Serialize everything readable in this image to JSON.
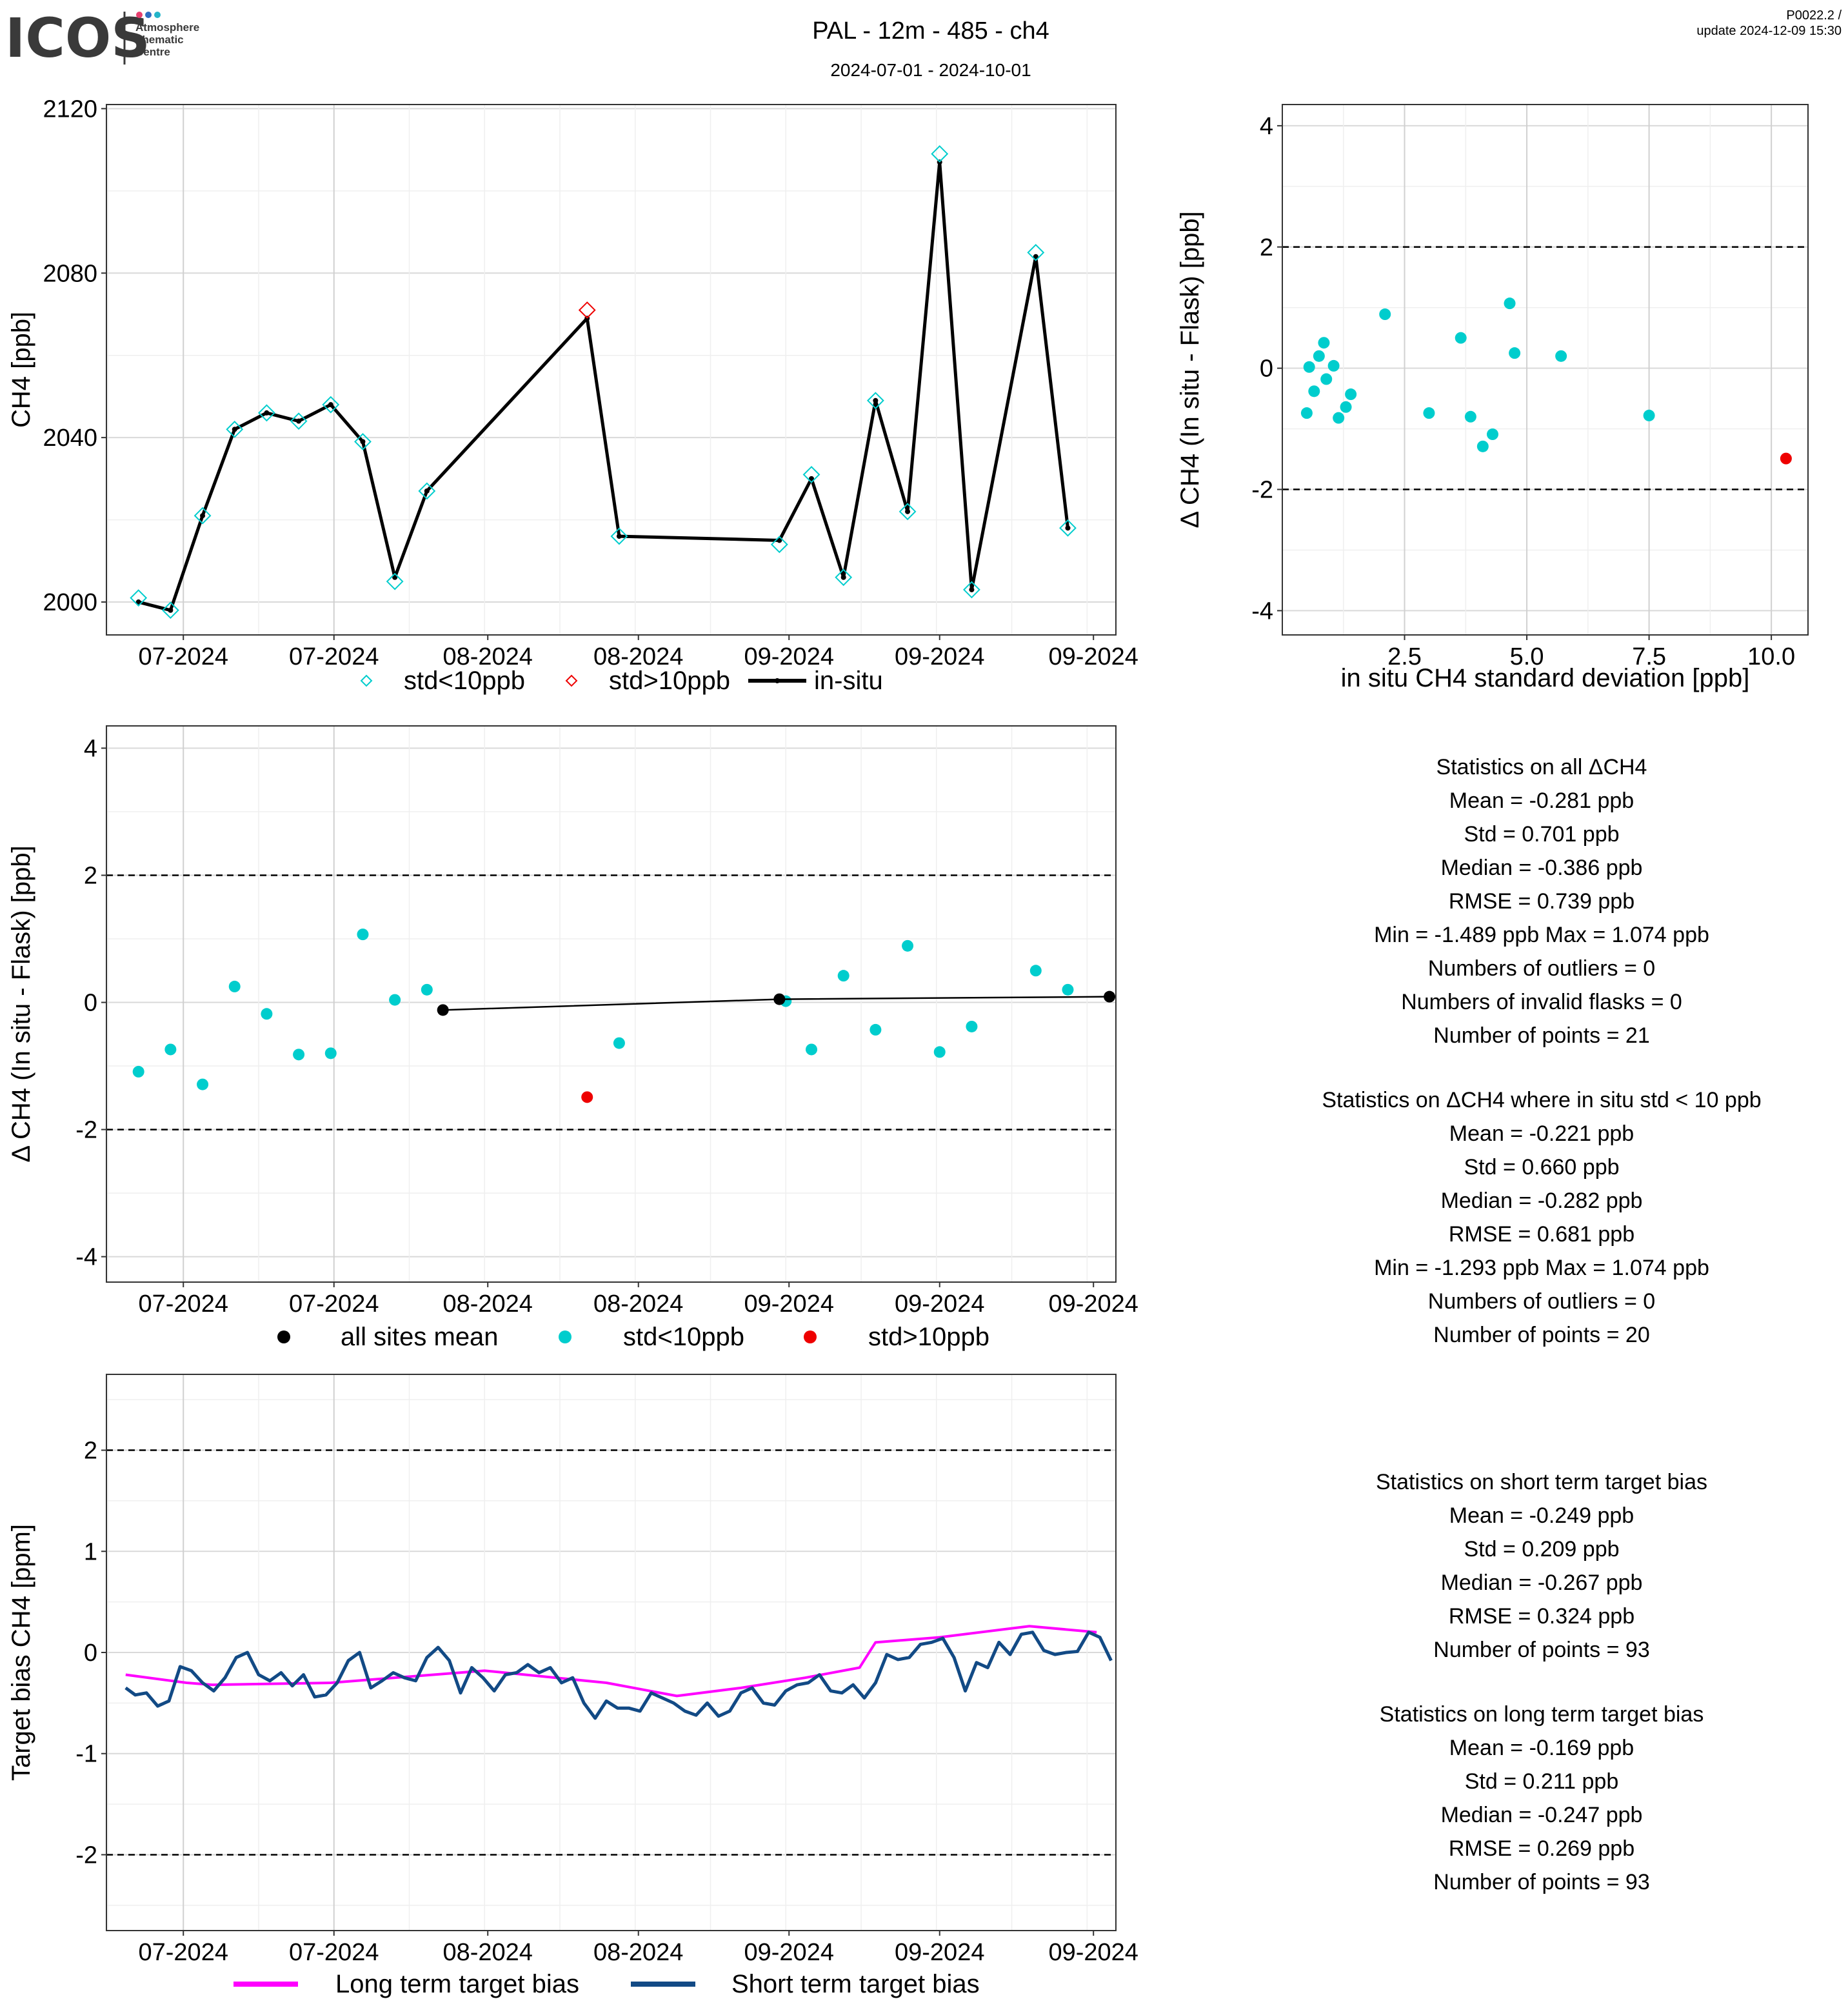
{
  "header": {
    "logo_text": "ICOS",
    "logo_subtitle": [
      "Atmosphere",
      "Thematic",
      "Centre"
    ],
    "logo_dot_colors": [
      "#e83f6f",
      "#2e6dc1",
      "#24b5c9"
    ],
    "title": "PAL - 12m - 485 - ch4",
    "date_range": "2024-07-01 - 2024-10-01",
    "version": "P0022.2 /",
    "update": "update  2024-12-09 15:30"
  },
  "colors": {
    "cyan": "#00cdcd",
    "red": "#ee0000",
    "magenta": "#ff00ff",
    "navy": "#124a85",
    "black": "#000000"
  },
  "chart_data": [
    {
      "type": "line",
      "ylabel": "CH4 [ppb]",
      "ylim": [
        1992,
        2121
      ],
      "yticks": [
        2000,
        2040,
        2080,
        2120
      ],
      "xlim": [
        0,
        31.5
      ],
      "xtick_positions": [
        2.4,
        7.1,
        11.9,
        16.6,
        21.3,
        26.0,
        30.8
      ],
      "xtick_labels": [
        "07-2024",
        "07-2024",
        "08-2024",
        "08-2024",
        "09-2024",
        "09-2024",
        "09-2024"
      ],
      "legend": [
        "std<10ppb",
        "std>10ppb",
        "in-situ"
      ],
      "x": [
        1,
        2,
        3,
        4,
        5,
        6,
        7,
        8,
        9,
        10,
        15,
        16,
        21,
        22,
        23,
        24,
        25,
        26,
        27,
        29,
        30
      ],
      "flask": [
        2001,
        1998,
        2021,
        2042,
        2046,
        2044,
        2048,
        2039,
        2005,
        2027,
        2071,
        2016,
        2014,
        2031,
        2006,
        2049,
        2022,
        2109,
        2003,
        2085,
        2018
      ],
      "in_situ": [
        2000,
        1998,
        2021,
        2042,
        2046,
        2044,
        2048,
        2039,
        2006,
        2027,
        2069,
        2016,
        2015,
        2030,
        2006,
        2049,
        2022,
        2107,
        2003,
        2084,
        2018
      ],
      "flask_flag": [
        "lo",
        "lo",
        "lo",
        "lo",
        "lo",
        "lo",
        "lo",
        "lo",
        "lo",
        "lo",
        "hi",
        "lo",
        "lo",
        "lo",
        "lo",
        "lo",
        "lo",
        "lo",
        "lo",
        "lo",
        "lo"
      ]
    },
    {
      "type": "scatter",
      "xlabel": "in situ CH4 standard deviation [ppb]",
      "ylabel": "Δ CH4 (In situ - Flask) [ppb]",
      "xlim": [
        0.0,
        10.75
      ],
      "ylim": [
        -4.4,
        4.35
      ],
      "xticks": [
        2.5,
        5.0,
        7.5,
        10.0
      ],
      "xtick_labels": [
        "2.5",
        "5.0",
        "7.5",
        "10.0"
      ],
      "yticks": [
        -4,
        -2,
        0,
        2,
        4
      ],
      "ref_lines": [
        -2,
        2
      ],
      "points": [
        {
          "x": 0.5,
          "y": -0.74,
          "c": "lo"
        },
        {
          "x": 0.55,
          "y": 0.02,
          "c": "lo"
        },
        {
          "x": 0.65,
          "y": -0.38,
          "c": "lo"
        },
        {
          "x": 0.75,
          "y": 0.2,
          "c": "lo"
        },
        {
          "x": 0.85,
          "y": 0.42,
          "c": "lo"
        },
        {
          "x": 0.9,
          "y": -0.18,
          "c": "lo"
        },
        {
          "x": 1.05,
          "y": 0.04,
          "c": "lo"
        },
        {
          "x": 1.15,
          "y": -0.82,
          "c": "lo"
        },
        {
          "x": 1.3,
          "y": -0.64,
          "c": "lo"
        },
        {
          "x": 1.4,
          "y": -0.43,
          "c": "lo"
        },
        {
          "x": 2.1,
          "y": 0.89,
          "c": "lo"
        },
        {
          "x": 3.0,
          "y": -0.74,
          "c": "lo"
        },
        {
          "x": 3.65,
          "y": 0.5,
          "c": "lo"
        },
        {
          "x": 3.85,
          "y": -0.8,
          "c": "lo"
        },
        {
          "x": 4.1,
          "y": -1.29,
          "c": "lo"
        },
        {
          "x": 4.3,
          "y": -1.09,
          "c": "lo"
        },
        {
          "x": 4.65,
          "y": 1.07,
          "c": "lo"
        },
        {
          "x": 4.75,
          "y": 0.25,
          "c": "lo"
        },
        {
          "x": 5.7,
          "y": 0.2,
          "c": "lo"
        },
        {
          "x": 7.5,
          "y": -0.78,
          "c": "lo"
        },
        {
          "x": 10.3,
          "y": -1.49,
          "c": "hi"
        }
      ]
    },
    {
      "type": "scatter",
      "ylabel": "Δ CH4 (In situ - Flask) [ppb]",
      "ylim": [
        -4.4,
        4.35
      ],
      "yticks": [
        -4,
        -2,
        0,
        2,
        4
      ],
      "ref_lines": [
        -2,
        2
      ],
      "xlim": [
        0,
        31.5
      ],
      "xtick_positions": [
        2.4,
        7.1,
        11.9,
        16.6,
        21.3,
        26.0,
        30.8
      ],
      "xtick_labels": [
        "07-2024",
        "07-2024",
        "08-2024",
        "08-2024",
        "09-2024",
        "09-2024",
        "09-2024"
      ],
      "legend": [
        "all sites mean",
        "std<10ppb",
        "std>10ppb"
      ],
      "points": [
        {
          "x": 1,
          "y": -1.09,
          "c": "lo"
        },
        {
          "x": 2,
          "y": -0.74,
          "c": "lo"
        },
        {
          "x": 3,
          "y": -1.29,
          "c": "lo"
        },
        {
          "x": 4,
          "y": 0.25,
          "c": "lo"
        },
        {
          "x": 5,
          "y": -0.18,
          "c": "lo"
        },
        {
          "x": 6,
          "y": -0.82,
          "c": "lo"
        },
        {
          "x": 7,
          "y": -0.8,
          "c": "lo"
        },
        {
          "x": 8,
          "y": 1.07,
          "c": "lo"
        },
        {
          "x": 9,
          "y": 0.04,
          "c": "lo"
        },
        {
          "x": 10,
          "y": 0.2,
          "c": "lo"
        },
        {
          "x": 15,
          "y": -1.49,
          "c": "hi"
        },
        {
          "x": 16,
          "y": -0.64,
          "c": "lo"
        },
        {
          "x": 21.2,
          "y": 0.02,
          "c": "lo"
        },
        {
          "x": 22,
          "y": -0.74,
          "c": "lo"
        },
        {
          "x": 23,
          "y": 0.42,
          "c": "lo"
        },
        {
          "x": 24,
          "y": -0.43,
          "c": "lo"
        },
        {
          "x": 25,
          "y": 0.89,
          "c": "lo"
        },
        {
          "x": 26,
          "y": -0.78,
          "c": "lo"
        },
        {
          "x": 27,
          "y": -0.38,
          "c": "lo"
        },
        {
          "x": 29,
          "y": 0.5,
          "c": "lo"
        },
        {
          "x": 30,
          "y": 0.2,
          "c": "lo"
        }
      ],
      "mean_x": [
        10.5,
        21.0,
        31.3
      ],
      "mean_y": [
        -0.12,
        0.05,
        0.09
      ]
    },
    {
      "type": "line",
      "ylabel": "Target bias CH4 [ppm]",
      "ylim": [
        -2.75,
        2.75
      ],
      "yticks": [
        -2,
        -1,
        0,
        1,
        2
      ],
      "ref_lines": [
        -2,
        2
      ],
      "xlim": [
        0,
        31.5
      ],
      "xtick_positions": [
        2.4,
        7.1,
        11.9,
        16.6,
        21.3,
        26.0,
        30.8
      ],
      "xtick_labels": [
        "07-2024",
        "07-2024",
        "08-2024",
        "08-2024",
        "09-2024",
        "09-2024",
        "09-2024"
      ],
      "legend": [
        "Long term target bias",
        "Short term target bias"
      ],
      "long_x": [
        0.6,
        2.5,
        3.3,
        7.0,
        11.8,
        15.6,
        17.8,
        19.8,
        21.8,
        23.5,
        24.0,
        26.0,
        28.8,
        30.9
      ],
      "long_y": [
        -0.22,
        -0.3,
        -0.32,
        -0.3,
        -0.18,
        -0.3,
        -0.43,
        -0.35,
        -0.25,
        -0.15,
        0.1,
        0.15,
        0.26,
        0.2
      ],
      "short_x": [
        0.6,
        0.9,
        1.25,
        1.6,
        1.95,
        2.3,
        2.65,
        3.0,
        3.35,
        3.7,
        4.05,
        4.4,
        4.75,
        5.1,
        5.45,
        5.8,
        6.15,
        6.5,
        6.85,
        7.2,
        7.55,
        7.9,
        8.25,
        8.6,
        8.95,
        9.3,
        9.65,
        10.0,
        10.35,
        10.7,
        11.05,
        11.4,
        11.75,
        12.1,
        12.45,
        12.8,
        13.15,
        13.5,
        13.85,
        14.2,
        14.55,
        14.9,
        15.25,
        15.6,
        15.95,
        16.3,
        16.65,
        17.0,
        17.35,
        17.7,
        18.05,
        18.4,
        18.75,
        19.1,
        19.45,
        19.8,
        20.15,
        20.5,
        20.85,
        21.2,
        21.55,
        21.9,
        22.25,
        22.6,
        22.95,
        23.3,
        23.65,
        24.0,
        24.35,
        24.7,
        25.05,
        25.4,
        25.75,
        26.1,
        26.45,
        26.8,
        27.15,
        27.5,
        27.85,
        28.2,
        28.55,
        28.9,
        29.25,
        29.6,
        29.95,
        30.3,
        30.65,
        31.0,
        31.35
      ],
      "short_y": [
        -0.35,
        -0.42,
        -0.4,
        -0.53,
        -0.48,
        -0.14,
        -0.18,
        -0.3,
        -0.38,
        -0.25,
        -0.05,
        0.0,
        -0.22,
        -0.28,
        -0.2,
        -0.33,
        -0.22,
        -0.44,
        -0.42,
        -0.3,
        -0.08,
        0.0,
        -0.35,
        -0.28,
        -0.2,
        -0.25,
        -0.28,
        -0.05,
        0.05,
        -0.08,
        -0.4,
        -0.15,
        -0.25,
        -0.38,
        -0.22,
        -0.2,
        -0.12,
        -0.2,
        -0.15,
        -0.3,
        -0.25,
        -0.5,
        -0.65,
        -0.48,
        -0.55,
        -0.55,
        -0.58,
        -0.4,
        -0.45,
        -0.5,
        -0.58,
        -0.62,
        -0.5,
        -0.63,
        -0.58,
        -0.4,
        -0.35,
        -0.5,
        -0.52,
        -0.38,
        -0.32,
        -0.3,
        -0.22,
        -0.38,
        -0.4,
        -0.32,
        -0.45,
        -0.3,
        -0.02,
        -0.07,
        -0.05,
        0.08,
        0.1,
        0.14,
        -0.05,
        -0.38,
        -0.1,
        -0.15,
        0.1,
        -0.02,
        0.18,
        0.2,
        0.02,
        -0.02,
        0.0,
        0.01,
        0.2,
        0.15,
        -0.08
      ]
    }
  ],
  "stats": {
    "all": {
      "title": "Statistics on all ΔCH4",
      "lines": [
        "Mean =  -0.281 ppb",
        "Std =  0.701 ppb",
        "Median =  -0.386 ppb",
        "RMSE =  0.739 ppb",
        "Min =  -1.489 ppb Max =  1.074 ppb",
        "Numbers of outliers =  0",
        "Numbers of invalid flasks =  0",
        "Number of points =  21"
      ]
    },
    "filtered": {
      "title": "Statistics on ΔCH4 where in situ std < 10 ppb",
      "lines": [
        "Mean =  -0.221 ppb",
        "Std =  0.660 ppb",
        "Median =  -0.282 ppb",
        "RMSE =  0.681 ppb",
        "Min =  -1.293 ppb Max =  1.074 ppb",
        "Numbers of outliers =  0",
        "Number of points =  20"
      ]
    },
    "short_term": {
      "title": "Statistics on short term target bias",
      "lines": [
        "Mean =  -0.249 ppb",
        "Std =  0.209 ppb",
        "Median =  -0.267 ppb",
        "RMSE =  0.324 ppb",
        "Number of points =  93"
      ]
    },
    "long_term": {
      "title": "Statistics on long term target bias",
      "lines": [
        "Mean =  -0.169 ppb",
        "Std =  0.211 ppb",
        "Median =  -0.247 ppb",
        "RMSE =  0.269 ppb",
        "Number of points =  93"
      ]
    }
  }
}
